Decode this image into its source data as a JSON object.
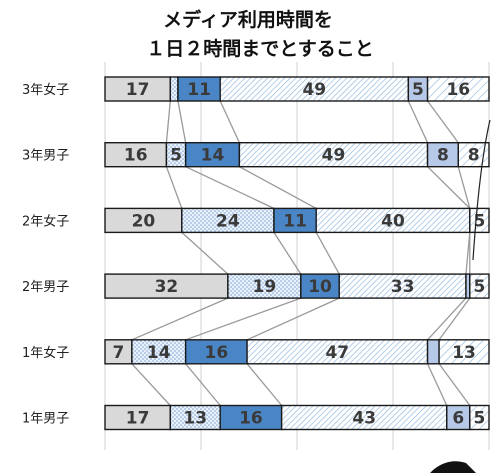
{
  "chart_data": {
    "type": "bar",
    "stacked": true,
    "percent": true,
    "orientation": "horizontal",
    "title_lines": [
      "メディア利用時間を",
      "１日２時間までとすること"
    ],
    "categories": [
      "3年女子",
      "3年男子",
      "2年女子",
      "2年男子",
      "1年女子",
      "1年男子"
    ],
    "series": [
      {
        "values": [
          17,
          16,
          20,
          32,
          7,
          17
        ]
      },
      {
        "values": [
          2,
          5,
          24,
          19,
          14,
          13
        ]
      },
      {
        "values": [
          11,
          14,
          11,
          10,
          16,
          16
        ]
      },
      {
        "values": [
          49,
          49,
          40,
          33,
          47,
          43
        ]
      },
      {
        "values": [
          5,
          8,
          0,
          1,
          3,
          6
        ]
      },
      {
        "values": [
          16,
          8,
          5,
          5,
          13,
          5
        ]
      }
    ],
    "labels": [
      [
        "17",
        "",
        "11",
        "49",
        "5",
        "16"
      ],
      [
        "16",
        "5",
        "14",
        "49",
        "8",
        "8"
      ],
      [
        "20",
        "24",
        "11",
        "40",
        "",
        "5"
      ],
      [
        "32",
        "19",
        "10",
        "33",
        "",
        "5"
      ],
      [
        "7",
        "14",
        "16",
        "47",
        "",
        "13"
      ],
      [
        "17",
        "13",
        "16",
        "43",
        "6",
        "5"
      ]
    ],
    "xlim": [
      0,
      100
    ],
    "grid": true,
    "connector_lines": true,
    "legend": "none"
  },
  "colors": {
    "seg1_fill": "#d9d9d9",
    "seg2_fill": "#eaf1fb",
    "seg2_dot": "#7aa4d6",
    "seg3_fill": "#4a86c5",
    "seg4_fill": "#ffffff",
    "seg4_hatch": "#8fb4dc",
    "seg5_fill": "#b7c9e8",
    "seg6_fill": "#ffffff",
    "seg6_hatch": "#8fb4dc",
    "border": "#1a1a1a",
    "connector": "#9a9a9a",
    "grid": "#d0d0d0"
  }
}
